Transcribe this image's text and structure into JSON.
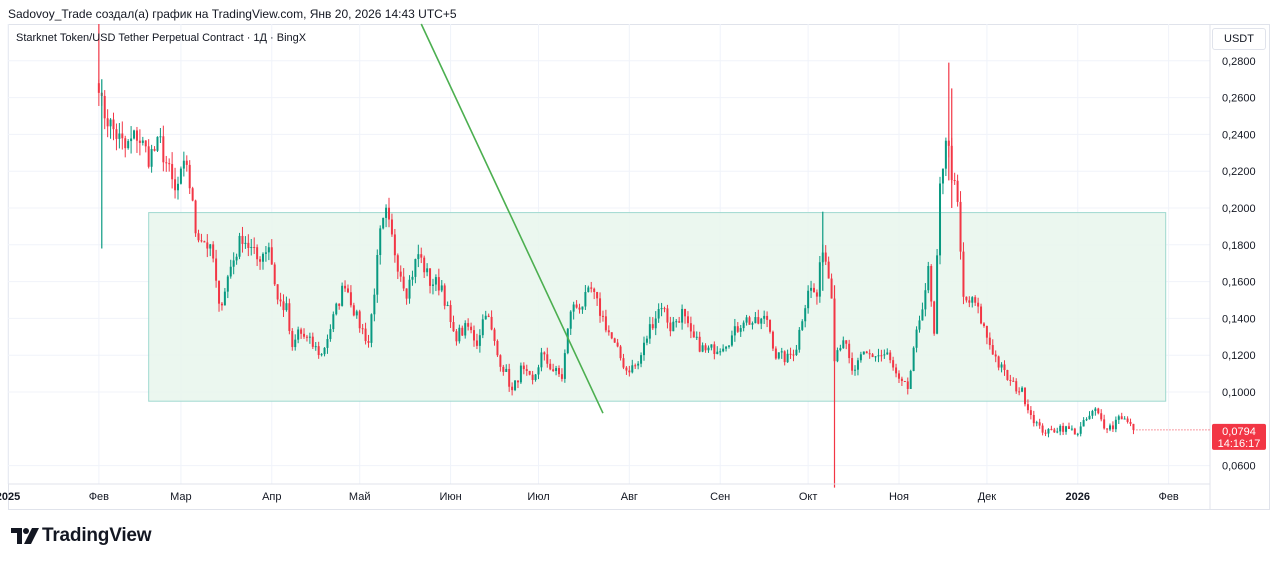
{
  "header": {
    "attribution": "Sadovoy_Trade создал(а) график на TradingView.com, Янв 20, 2026 14:43 UTC+5"
  },
  "symbol": {
    "title": "Starknet Token/USD Tether Perpetual Contract · 1Д · BingX"
  },
  "currency_button": "USDT",
  "last_price": {
    "value": "0,0794",
    "countdown": "14:16:17",
    "color": "#f23645"
  },
  "brand": {
    "name": "TradingView"
  },
  "colors": {
    "up": "#089981",
    "down": "#f23645",
    "range_fill": "#e8f6ec",
    "range_border": "#9fd9cf",
    "trendline": "#4caf50"
  },
  "chart_data": {
    "type": "candlestick",
    "title": "Starknet Token/USD Tether Perpetual Contract · 1Д · BingX",
    "y_axis": {
      "ticks": [
        "0,0600",
        "0,1000",
        "0,1200",
        "0,1400",
        "0,1600",
        "0,1800",
        "0,2000",
        "0,2200",
        "0,2400",
        "0,2600",
        "0,2800"
      ],
      "tick_values": [
        0.06,
        0.1,
        0.12,
        0.14,
        0.16,
        0.18,
        0.2,
        0.22,
        0.24,
        0.26,
        0.28
      ],
      "range": [
        0.05,
        0.3
      ]
    },
    "x_axis": {
      "ticks": [
        {
          "label": "2025",
          "date": "2025-01-01",
          "bold": true
        },
        {
          "label": "Фев",
          "date": "2025-02-01"
        },
        {
          "label": "Мар",
          "date": "2025-03-01"
        },
        {
          "label": "Апр",
          "date": "2025-04-01"
        },
        {
          "label": "Май",
          "date": "2025-05-01"
        },
        {
          "label": "Июн",
          "date": "2025-06-01"
        },
        {
          "label": "Июл",
          "date": "2025-07-01"
        },
        {
          "label": "Авг",
          "date": "2025-08-01"
        },
        {
          "label": "Сен",
          "date": "2025-09-01"
        },
        {
          "label": "Окт",
          "date": "2025-10-01"
        },
        {
          "label": "Ноя",
          "date": "2025-11-01"
        },
        {
          "label": "Дек",
          "date": "2025-12-01"
        },
        {
          "label": "2026",
          "date": "2026-01-01",
          "bold": true
        },
        {
          "label": "Фев",
          "date": "2026-02-01"
        }
      ],
      "range": [
        "2025-01-01",
        "2026-02-10"
      ]
    },
    "range_box": {
      "from": "2025-02-18",
      "to": "2026-01-31",
      "low": 0.095,
      "high": 0.1975
    },
    "trendline": {
      "from": {
        "date": "2025-05-22",
        "value": 0.3
      },
      "to": {
        "date": "2025-07-23",
        "value": 0.0885
      }
    },
    "price_path": [
      [
        "2025-02-01",
        0.27
      ],
      [
        "2025-02-02",
        0.255
      ],
      [
        "2025-02-05",
        0.245
      ],
      [
        "2025-02-10",
        0.232
      ],
      [
        "2025-02-14",
        0.24
      ],
      [
        "2025-02-18",
        0.228
      ],
      [
        "2025-02-22",
        0.235
      ],
      [
        "2025-02-27",
        0.208
      ],
      [
        "2025-03-03",
        0.225
      ],
      [
        "2025-03-06",
        0.188
      ],
      [
        "2025-03-10",
        0.18
      ],
      [
        "2025-03-12",
        0.172
      ],
      [
        "2025-03-14",
        0.145
      ],
      [
        "2025-03-18",
        0.168
      ],
      [
        "2025-03-22",
        0.185
      ],
      [
        "2025-03-27",
        0.172
      ],
      [
        "2025-03-31",
        0.18
      ],
      [
        "2025-04-03",
        0.15
      ],
      [
        "2025-04-06",
        0.145
      ],
      [
        "2025-04-08",
        0.122
      ],
      [
        "2025-04-10",
        0.133
      ],
      [
        "2025-04-14",
        0.127
      ],
      [
        "2025-04-18",
        0.12
      ],
      [
        "2025-04-22",
        0.14
      ],
      [
        "2025-04-26",
        0.16
      ],
      [
        "2025-04-30",
        0.14
      ],
      [
        "2025-05-04",
        0.127
      ],
      [
        "2025-05-08",
        0.185
      ],
      [
        "2025-05-10",
        0.196
      ],
      [
        "2025-05-14",
        0.17
      ],
      [
        "2025-05-17",
        0.155
      ],
      [
        "2025-05-21",
        0.175
      ],
      [
        "2025-05-25",
        0.16
      ],
      [
        "2025-05-29",
        0.158
      ],
      [
        "2025-06-02",
        0.13
      ],
      [
        "2025-06-07",
        0.135
      ],
      [
        "2025-06-10",
        0.127
      ],
      [
        "2025-06-13",
        0.145
      ],
      [
        "2025-06-17",
        0.12
      ],
      [
        "2025-06-20",
        0.11
      ],
      [
        "2025-06-22",
        0.1
      ],
      [
        "2025-06-25",
        0.112
      ],
      [
        "2025-06-29",
        0.105
      ],
      [
        "2025-07-02",
        0.12
      ],
      [
        "2025-07-06",
        0.112
      ],
      [
        "2025-07-09",
        0.108
      ],
      [
        "2025-07-12",
        0.145
      ],
      [
        "2025-07-16",
        0.148
      ],
      [
        "2025-07-19",
        0.155
      ],
      [
        "2025-07-23",
        0.14
      ],
      [
        "2025-07-27",
        0.125
      ],
      [
        "2025-07-31",
        0.112
      ],
      [
        "2025-08-04",
        0.115
      ],
      [
        "2025-08-08",
        0.135
      ],
      [
        "2025-08-12",
        0.148
      ],
      [
        "2025-08-15",
        0.135
      ],
      [
        "2025-08-19",
        0.143
      ],
      [
        "2025-08-22",
        0.13
      ],
      [
        "2025-08-27",
        0.122
      ],
      [
        "2025-09-01",
        0.125
      ],
      [
        "2025-09-05",
        0.13
      ],
      [
        "2025-09-09",
        0.14
      ],
      [
        "2025-09-13",
        0.137
      ],
      [
        "2025-09-17",
        0.14
      ],
      [
        "2025-09-20",
        0.12
      ],
      [
        "2025-09-24",
        0.118
      ],
      [
        "2025-09-27",
        0.125
      ],
      [
        "2025-10-01",
        0.157
      ],
      [
        "2025-10-04",
        0.152
      ],
      [
        "2025-10-06",
        0.18
      ],
      [
        "2025-10-09",
        0.155
      ],
      [
        "2025-10-10",
        0.12
      ],
      [
        "2025-10-13",
        0.13
      ],
      [
        "2025-10-16",
        0.11
      ],
      [
        "2025-10-20",
        0.12
      ],
      [
        "2025-10-24",
        0.12
      ],
      [
        "2025-10-28",
        0.12
      ],
      [
        "2025-11-01",
        0.105
      ],
      [
        "2025-11-04",
        0.102
      ],
      [
        "2025-11-08",
        0.14
      ],
      [
        "2025-11-11",
        0.165
      ],
      [
        "2025-11-13",
        0.13
      ],
      [
        "2025-11-15",
        0.21
      ],
      [
        "2025-11-17",
        0.24
      ],
      [
        "2025-11-19",
        0.22
      ],
      [
        "2025-11-21",
        0.2
      ],
      [
        "2025-11-23",
        0.15
      ],
      [
        "2025-11-27",
        0.148
      ],
      [
        "2025-12-01",
        0.13
      ],
      [
        "2025-12-05",
        0.115
      ],
      [
        "2025-12-09",
        0.105
      ],
      [
        "2025-12-13",
        0.1
      ],
      [
        "2025-12-16",
        0.088
      ],
      [
        "2025-12-19",
        0.08
      ],
      [
        "2025-12-22",
        0.078
      ],
      [
        "2025-12-26",
        0.081
      ],
      [
        "2026-01-01",
        0.078
      ],
      [
        "2026-01-04",
        0.085
      ],
      [
        "2026-01-07",
        0.09
      ],
      [
        "2026-01-10",
        0.082
      ],
      [
        "2026-01-13",
        0.081
      ],
      [
        "2026-01-15",
        0.088
      ],
      [
        "2026-01-17",
        0.085
      ],
      [
        "2026-01-20",
        0.0794
      ]
    ],
    "spikes": [
      {
        "date": "2025-02-01",
        "high": 0.3,
        "low": 0.265,
        "up": false
      },
      {
        "date": "2025-02-02",
        "high": 0.27,
        "low": 0.178,
        "up": true
      },
      {
        "date": "2025-10-10",
        "high": 0.158,
        "low": 0.048,
        "up": false
      },
      {
        "date": "2025-10-06",
        "high": 0.198,
        "low": 0.155,
        "up": true
      },
      {
        "date": "2025-11-18",
        "high": 0.279,
        "low": 0.215,
        "up": false
      },
      {
        "date": "2025-11-19",
        "high": 0.265,
        "low": 0.2,
        "up": false
      }
    ]
  }
}
